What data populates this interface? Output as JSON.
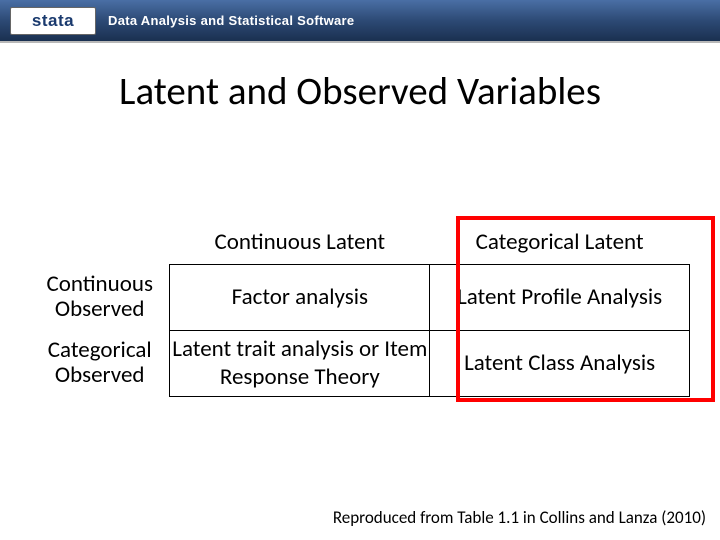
{
  "header": {
    "logo_text": "stata",
    "tagline": "Data Analysis and Statistical Software"
  },
  "title": "Latent and Observed Variables",
  "table": {
    "col_headers": [
      "Continuous Latent",
      "Categorical Latent"
    ],
    "row_headers": [
      "Continuous Observed",
      "Categorical Observed"
    ],
    "cells": {
      "r0c0": "Factor analysis",
      "r0c1": "Latent Profile Analysis",
      "r1c0": "Latent trait analysis or Item Response Theory",
      "r1c1": "Latent Class Analysis"
    },
    "border_color": "#000000",
    "highlight_color": "#ff0000",
    "font_size_pt": 17,
    "highlight_column_index": 1
  },
  "citation": "Reproduced from Table 1.1 in Collins and Lanza (2010)",
  "colors": {
    "header_gradient_top": "#4a6fa5",
    "header_gradient_bottom": "#1a3050",
    "background": "#ffffff",
    "text": "#000000"
  }
}
